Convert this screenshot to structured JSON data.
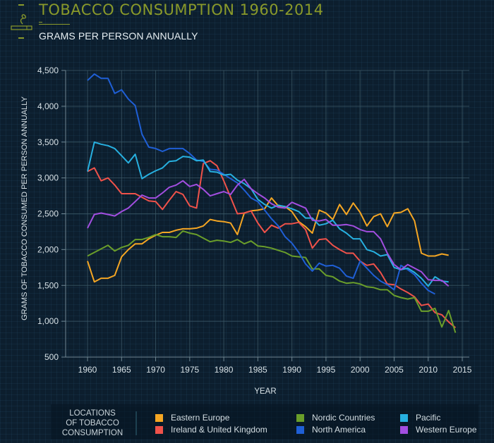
{
  "header": {
    "title": "TOBACCO CONSUMPTION 1960-2014",
    "subtitle": "GRAMS PER PERSON ANNUALLY",
    "logo_icon": "cigarette-smoke-icon"
  },
  "legend": {
    "title_lines": [
      "LOCATIONS",
      "OF TOBACCO",
      "CONSUMPTION"
    ]
  },
  "chart_data": {
    "type": "line",
    "title": "TOBACCO CONSUMPTION 1960-2014",
    "subtitle": "GRAMS PER PERSON ANNUALLY",
    "xlabel": "YEAR",
    "ylabel": "GRAMS OF TOBACCO CONSUMED PER PERSON ANNUALLY",
    "xlim": [
      1956,
      2016
    ],
    "ylim": [
      500,
      4500
    ],
    "x_ticks": [
      1960,
      1965,
      1970,
      1975,
      1980,
      1985,
      1990,
      1995,
      2000,
      2005,
      2010,
      2015
    ],
    "x_tick_labels": [
      "1960",
      "1965",
      "1970",
      "1975",
      "1980",
      "1985",
      "1990",
      "1995",
      "2000",
      "2005",
      "2010",
      "2015"
    ],
    "y_ticks": [
      500,
      1000,
      1500,
      2000,
      2500,
      3000,
      3500,
      4000,
      4500
    ],
    "y_tick_labels": [
      "500",
      "1,000",
      "1,500",
      "2,000",
      "2,500",
      "3,000",
      "3,500",
      "4,000",
      "4,500"
    ],
    "grid": true,
    "legend_position": "bottom",
    "series": [
      {
        "name": "Eastern Europe",
        "color": "#f5a623",
        "start_year": 1960,
        "values": [
          1840,
          1550,
          1600,
          1600,
          1640,
          1900,
          2000,
          2080,
          2080,
          2150,
          2200,
          2240,
          2240,
          2270,
          2290,
          2290,
          2300,
          2330,
          2420,
          2400,
          2390,
          2370,
          2210,
          2510,
          2540,
          2550,
          2570,
          2720,
          2610,
          2600,
          2530,
          2390,
          2320,
          2230,
          2550,
          2510,
          2420,
          2630,
          2490,
          2650,
          2520,
          2330,
          2460,
          2500,
          2320,
          2510,
          2520,
          2570,
          2400,
          1950,
          1910,
          1910,
          1940,
          1920
        ]
      },
      {
        "name": "Ireland & United Kingdom",
        "color": "#f0524a",
        "start_year": 1960,
        "values": [
          3090,
          3140,
          2960,
          3000,
          2900,
          2780,
          2780,
          2780,
          2730,
          2680,
          2670,
          2560,
          2690,
          2810,
          2770,
          2610,
          2580,
          3200,
          3240,
          3170,
          2960,
          2730,
          2500,
          2510,
          2540,
          2370,
          2240,
          2340,
          2300,
          2360,
          2360,
          2380,
          2280,
          2020,
          2140,
          2150,
          2060,
          2000,
          1950,
          1950,
          1840,
          1780,
          1800,
          1680,
          1520,
          1510,
          1450,
          1400,
          1340,
          1220,
          1240,
          1120,
          1090,
          990,
          910
        ]
      },
      {
        "name": "Nordic Countries",
        "color": "#6a9e2a",
        "start_year": 1960,
        "values": [
          1910,
          1960,
          2010,
          2060,
          1980,
          2030,
          2060,
          2140,
          2140,
          2170,
          2210,
          2180,
          2180,
          2170,
          2260,
          2230,
          2210,
          2160,
          2110,
          2130,
          2120,
          2100,
          2140,
          2080,
          2120,
          2050,
          2040,
          2020,
          1990,
          1960,
          1910,
          1900,
          1890,
          1730,
          1730,
          1640,
          1620,
          1560,
          1530,
          1540,
          1520,
          1480,
          1470,
          1440,
          1440,
          1360,
          1330,
          1310,
          1330,
          1140,
          1140,
          1180,
          920,
          1150,
          840
        ]
      },
      {
        "name": "North America",
        "color": "#1f5fd6",
        "start_year": 1960,
        "values": [
          4360,
          4450,
          4390,
          4390,
          4180,
          4230,
          4100,
          4010,
          3610,
          3430,
          3410,
          3370,
          3410,
          3410,
          3410,
          3340,
          3250,
          3230,
          3120,
          3110,
          3050,
          2990,
          2930,
          2830,
          2720,
          2670,
          2550,
          2430,
          2330,
          2180,
          2090,
          1960,
          1800,
          1700,
          1810,
          1770,
          1780,
          1740,
          1630,
          1600,
          1840,
          1740,
          1640,
          1560,
          1510,
          1440,
          1780,
          1720,
          1650,
          1530,
          1430,
          1380
        ]
      },
      {
        "name": "Pacific",
        "color": "#27b0e0",
        "start_year": 1960,
        "values": [
          3090,
          3500,
          3470,
          3450,
          3410,
          3310,
          3210,
          3330,
          2990,
          3050,
          3100,
          3140,
          3230,
          3240,
          3300,
          3290,
          3240,
          3250,
          3090,
          3080,
          3040,
          3050,
          2970,
          2920,
          2850,
          2700,
          2630,
          2580,
          2620,
          2600,
          2570,
          2530,
          2440,
          2440,
          2340,
          2360,
          2410,
          2290,
          2230,
          2150,
          2150,
          2000,
          1970,
          1910,
          1930,
          1750,
          1720,
          1740,
          1680,
          1600,
          1490,
          1620,
          1560,
          1550
        ]
      },
      {
        "name": "Western Europe",
        "color": "#a24ee0",
        "start_year": 1960,
        "values": [
          2300,
          2490,
          2510,
          2490,
          2470,
          2530,
          2580,
          2670,
          2760,
          2720,
          2720,
          2790,
          2870,
          2900,
          2960,
          2880,
          2910,
          2840,
          2750,
          2780,
          2810,
          2770,
          2900,
          2980,
          2850,
          2780,
          2720,
          2640,
          2590,
          2580,
          2660,
          2620,
          2580,
          2410,
          2400,
          2420,
          2340,
          2340,
          2350,
          2330,
          2280,
          2250,
          2250,
          2150,
          1950,
          1790,
          1720,
          1790,
          1740,
          1690,
          1580,
          1570,
          1570,
          1490
        ]
      }
    ]
  }
}
